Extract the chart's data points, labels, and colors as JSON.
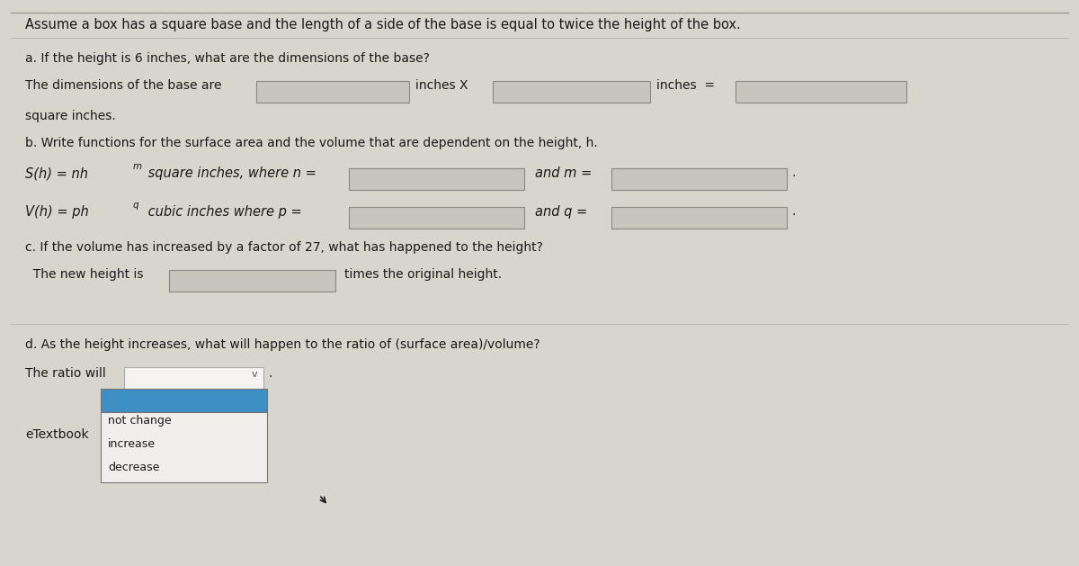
{
  "title_text": "Assume a box has a square base and the length of a side of the base is equal to twice the height of the box.",
  "bg_color": "#d8d5cc",
  "input_box_color": "#c8c5bc",
  "dropdown_selected_color": "#3d8fc4",
  "dropdown_bg": "#f0efec",
  "text_color": "#1a1a1a",
  "part_a_label": "a. If the height is 6 inches, what are the dimensions of the base?",
  "part_a_line1": "The dimensions of the base are",
  "part_a_inches_x": "inches X",
  "part_a_inches_eq": "inches  =",
  "part_a_square": "square inches.",
  "part_b_label": "b. Write functions for the surface area and the volume that are dependent on the height, h.",
  "part_b_sh_main": "S(h) = nh",
  "part_b_sh_sup": "m",
  "part_b_sh_rest": " square inches, where n =",
  "part_b_and_m": "and m =",
  "part_b_vh_main": "V(h) = ph",
  "part_b_vh_sup": "q",
  "part_b_vh_rest": " cubic inches where p =",
  "part_b_and_q": "and q =",
  "part_c_label": "c. If the volume has increased by a factor of 27, what has happened to the height?",
  "part_c_line": "The new height is",
  "part_c_rest": "times the original height.",
  "part_d_label": "d. As the height increases, what will happen to the ratio of (surface area)/volume?",
  "part_d_line": "The ratio will",
  "etextbook": "eTextbook",
  "dropdown_options": [
    "not change",
    "increase",
    "decrease"
  ],
  "figw": 12.0,
  "figh": 6.29,
  "dpi": 100
}
